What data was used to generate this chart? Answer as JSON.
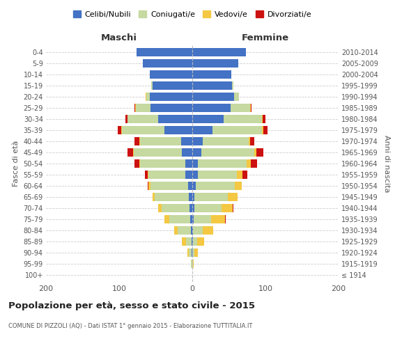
{
  "age_groups": [
    "100+",
    "95-99",
    "90-94",
    "85-89",
    "80-84",
    "75-79",
    "70-74",
    "65-69",
    "60-64",
    "55-59",
    "50-54",
    "45-49",
    "40-44",
    "35-39",
    "30-34",
    "25-29",
    "20-24",
    "15-19",
    "10-14",
    "5-9",
    "0-4"
  ],
  "birth_years": [
    "≤ 1914",
    "1915-1919",
    "1920-1924",
    "1925-1929",
    "1930-1934",
    "1935-1939",
    "1940-1944",
    "1945-1949",
    "1950-1954",
    "1955-1959",
    "1960-1964",
    "1965-1969",
    "1970-1974",
    "1975-1979",
    "1980-1984",
    "1985-1989",
    "1990-1994",
    "1995-1999",
    "2000-2004",
    "2005-2009",
    "2010-2014"
  ],
  "male_celibe": [
    0,
    0,
    1,
    1,
    2,
    3,
    4,
    5,
    6,
    10,
    10,
    14,
    15,
    38,
    47,
    57,
    58,
    54,
    58,
    68,
    76
  ],
  "male_coniugato": [
    0,
    2,
    4,
    8,
    18,
    28,
    38,
    46,
    51,
    50,
    61,
    66,
    56,
    58,
    42,
    20,
    5,
    2,
    0,
    0,
    0
  ],
  "male_vedovo": [
    0,
    0,
    2,
    5,
    5,
    7,
    5,
    3,
    3,
    1,
    1,
    1,
    1,
    1,
    0,
    1,
    1,
    0,
    0,
    0,
    0
  ],
  "male_divorziato": [
    0,
    0,
    0,
    0,
    0,
    0,
    0,
    0,
    1,
    4,
    7,
    8,
    7,
    5,
    2,
    1,
    0,
    0,
    0,
    0,
    0
  ],
  "female_celibe": [
    0,
    0,
    0,
    1,
    1,
    2,
    3,
    3,
    5,
    8,
    8,
    12,
    14,
    28,
    43,
    52,
    57,
    54,
    53,
    63,
    73
  ],
  "female_coniugata": [
    0,
    1,
    3,
    6,
    13,
    24,
    37,
    46,
    53,
    53,
    66,
    73,
    63,
    67,
    52,
    27,
    7,
    2,
    0,
    0,
    0
  ],
  "female_vedova": [
    0,
    1,
    5,
    9,
    15,
    19,
    15,
    13,
    10,
    8,
    6,
    3,
    2,
    2,
    1,
    1,
    0,
    0,
    0,
    0,
    0
  ],
  "female_divorziata": [
    0,
    0,
    0,
    0,
    0,
    1,
    1,
    0,
    0,
    6,
    9,
    9,
    6,
    6,
    4,
    1,
    0,
    0,
    0,
    0,
    0
  ],
  "colors": {
    "celibe": "#4472c4",
    "coniugato": "#c5d9a0",
    "vedovo": "#f4c842",
    "divorziato": "#cc1111"
  },
  "legend_labels": [
    "Celibi/Nubili",
    "Coniugati/e",
    "Vedovi/e",
    "Divorziati/e"
  ],
  "title": "Popolazione per età, sesso e stato civile - 2015",
  "subtitle": "COMUNE DI PIZZOLI (AQ) - Dati ISTAT 1° gennaio 2015 - Elaborazione TUTTITALIA.IT",
  "label_maschi": "Maschi",
  "label_femmine": "Femmine",
  "ylabel_left": "Fasce di età",
  "ylabel_right": "Anni di nascita",
  "xlim": 200,
  "bg_color": "#ffffff",
  "grid_color": "#cccccc",
  "bar_height": 0.75
}
